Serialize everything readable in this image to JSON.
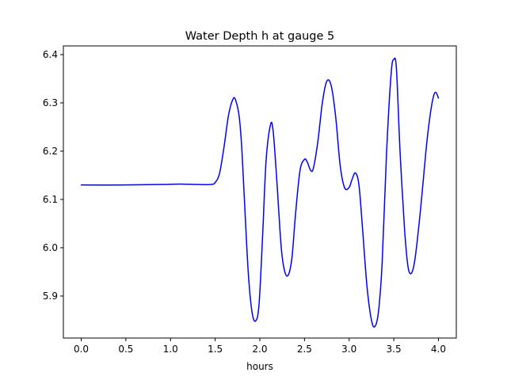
{
  "chart_data": {
    "type": "line",
    "title": "Water Depth h at gauge 5",
    "xlabel": "hours",
    "ylabel": "",
    "xlim": [
      -0.2,
      4.2
    ],
    "ylim": [
      5.813,
      6.418
    ],
    "x_ticks": [
      0.0,
      0.5,
      1.0,
      1.5,
      2.0,
      2.5,
      3.0,
      3.5,
      4.0
    ],
    "x_tick_labels": [
      "0.0",
      "0.5",
      "1.0",
      "1.5",
      "2.0",
      "2.5",
      "3.0",
      "3.5",
      "4.0"
    ],
    "y_ticks": [
      5.9,
      6.0,
      6.1,
      6.2,
      6.3,
      6.4
    ],
    "y_tick_labels": [
      "5.9",
      "6.0",
      "6.1",
      "6.2",
      "6.3",
      "6.4"
    ],
    "grid": false,
    "colors": {
      "line": "#0000ff",
      "axes": "#000000",
      "background": "#ffffff"
    },
    "series": [
      {
        "color": "#0000ff",
        "points": [
          [
            0.0,
            6.13
          ],
          [
            0.5,
            6.13
          ],
          [
            0.9,
            6.131
          ],
          [
            1.1,
            6.132
          ],
          [
            1.3,
            6.131
          ],
          [
            1.45,
            6.131
          ],
          [
            1.5,
            6.135
          ],
          [
            1.55,
            6.155
          ],
          [
            1.6,
            6.21
          ],
          [
            1.65,
            6.275
          ],
          [
            1.7,
            6.308
          ],
          [
            1.73,
            6.305
          ],
          [
            1.77,
            6.27
          ],
          [
            1.8,
            6.2
          ],
          [
            1.83,
            6.09
          ],
          [
            1.87,
            5.95
          ],
          [
            1.91,
            5.87
          ],
          [
            1.95,
            5.848
          ],
          [
            1.99,
            5.88
          ],
          [
            2.03,
            6.02
          ],
          [
            2.07,
            6.18
          ],
          [
            2.12,
            6.255
          ],
          [
            2.15,
            6.24
          ],
          [
            2.19,
            6.14
          ],
          [
            2.24,
            6.0
          ],
          [
            2.28,
            5.95
          ],
          [
            2.32,
            5.944
          ],
          [
            2.36,
            5.98
          ],
          [
            2.4,
            6.07
          ],
          [
            2.45,
            6.16
          ],
          [
            2.5,
            6.183
          ],
          [
            2.53,
            6.178
          ],
          [
            2.57,
            6.16
          ],
          [
            2.6,
            6.165
          ],
          [
            2.65,
            6.22
          ],
          [
            2.7,
            6.3
          ],
          [
            2.75,
            6.345
          ],
          [
            2.8,
            6.335
          ],
          [
            2.85,
            6.27
          ],
          [
            2.9,
            6.17
          ],
          [
            2.95,
            6.124
          ],
          [
            3.0,
            6.125
          ],
          [
            3.03,
            6.14
          ],
          [
            3.07,
            6.155
          ],
          [
            3.11,
            6.13
          ],
          [
            3.15,
            6.04
          ],
          [
            3.2,
            5.92
          ],
          [
            3.25,
            5.85
          ],
          [
            3.29,
            5.837
          ],
          [
            3.33,
            5.87
          ],
          [
            3.37,
            5.97
          ],
          [
            3.42,
            6.2
          ],
          [
            3.47,
            6.36
          ],
          [
            3.5,
            6.39
          ],
          [
            3.53,
            6.37
          ],
          [
            3.57,
            6.2
          ],
          [
            3.62,
            6.04
          ],
          [
            3.66,
            5.96
          ],
          [
            3.7,
            5.948
          ],
          [
            3.74,
            5.98
          ],
          [
            3.8,
            6.08
          ],
          [
            3.86,
            6.2
          ],
          [
            3.9,
            6.265
          ],
          [
            3.94,
            6.31
          ],
          [
            3.97,
            6.322
          ],
          [
            4.0,
            6.31
          ]
        ]
      }
    ]
  }
}
